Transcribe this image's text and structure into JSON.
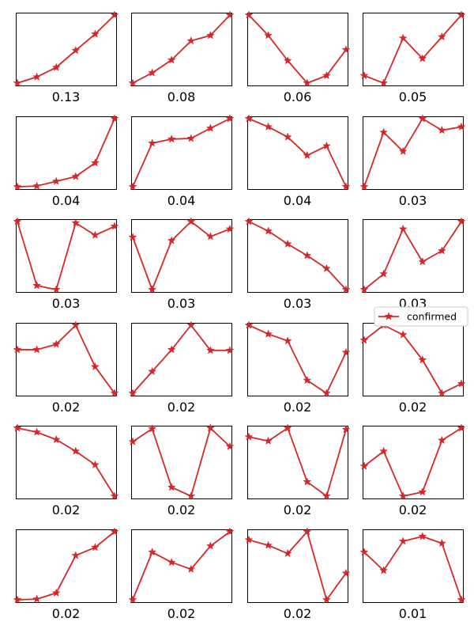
{
  "chart_data": {
    "type": "line",
    "layout": "small-multiples",
    "rows": 6,
    "cols": 4,
    "color": "#d62728",
    "marker": "star",
    "legend": {
      "label": "confirmed",
      "placement": "right, beside row 3"
    },
    "axes_ticks_visible": false,
    "grid": false,
    "panels": [
      {
        "label": "0.13",
        "values": [
          0.0,
          0.09,
          0.23,
          0.48,
          0.72,
          1.0
        ]
      },
      {
        "label": "0.08",
        "values": [
          0.0,
          0.15,
          0.34,
          0.62,
          0.7,
          1.0
        ]
      },
      {
        "label": "0.06",
        "values": [
          1.0,
          0.7,
          0.33,
          0.0,
          0.11,
          0.49
        ]
      },
      {
        "label": "0.05",
        "values": [
          0.11,
          0.0,
          0.66,
          0.36,
          0.68,
          1.0
        ]
      },
      {
        "label": "0.04",
        "values": [
          0.0,
          0.01,
          0.08,
          0.15,
          0.35,
          1.0
        ]
      },
      {
        "label": "0.04",
        "values": [
          0.0,
          0.64,
          0.7,
          0.71,
          0.86,
          1.0
        ]
      },
      {
        "label": "0.04",
        "values": [
          1.0,
          0.88,
          0.73,
          0.46,
          0.6,
          0.0
        ]
      },
      {
        "label": "0.03",
        "values": [
          0.0,
          0.8,
          0.52,
          1.0,
          0.83,
          0.88
        ]
      },
      {
        "label": "0.03",
        "values": [
          1.0,
          0.06,
          0.0,
          0.98,
          0.8,
          0.93
        ]
      },
      {
        "label": "0.03",
        "values": [
          0.77,
          0.0,
          0.72,
          1.0,
          0.78,
          0.89
        ]
      },
      {
        "label": "0.03",
        "values": [
          1.0,
          0.86,
          0.67,
          0.5,
          0.31,
          0.0
        ]
      },
      {
        "label": "0.03",
        "values": [
          0.0,
          0.23,
          0.89,
          0.41,
          0.57,
          1.0
        ]
      },
      {
        "label": "0.02",
        "values": [
          0.64,
          0.64,
          0.72,
          1.0,
          0.39,
          0.0
        ]
      },
      {
        "label": "0.02",
        "values": [
          0.0,
          0.32,
          0.64,
          1.0,
          0.63,
          0.63
        ]
      },
      {
        "label": "0.02",
        "values": [
          1.0,
          0.87,
          0.77,
          0.19,
          0.0,
          0.6
        ]
      },
      {
        "label": "0.02",
        "values": [
          0.78,
          1.0,
          0.86,
          0.49,
          0.0,
          0.14
        ]
      },
      {
        "label": "0.02",
        "values": [
          1.0,
          0.94,
          0.83,
          0.66,
          0.46,
          0.0
        ]
      },
      {
        "label": "0.02",
        "values": [
          0.8,
          0.99,
          0.13,
          0.0,
          1.0,
          0.73
        ]
      },
      {
        "label": "0.02",
        "values": [
          0.87,
          0.81,
          1.0,
          0.21,
          0.0,
          0.98
        ]
      },
      {
        "label": "0.02",
        "values": [
          0.44,
          0.66,
          0.0,
          0.06,
          0.82,
          1.0
        ]
      },
      {
        "label": "0.02",
        "values": [
          0.0,
          0.01,
          0.1,
          0.65,
          0.77,
          1.0
        ]
      },
      {
        "label": "0.02",
        "values": [
          0.0,
          0.7,
          0.55,
          0.45,
          0.79,
          1.0
        ]
      },
      {
        "label": "0.02",
        "values": [
          0.88,
          0.8,
          0.68,
          1.0,
          0.0,
          0.39
        ]
      },
      {
        "label": "0.01",
        "values": [
          0.7,
          0.43,
          0.86,
          0.93,
          0.83,
          0.0
        ]
      }
    ]
  }
}
